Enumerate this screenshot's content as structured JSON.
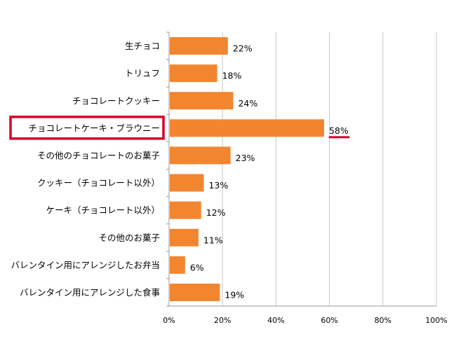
{
  "chart_data": {
    "type": "bar",
    "orientation": "horizontal",
    "categories": [
      "生チョコ",
      "トリュフ",
      "チョコレートクッキー",
      "チョコレートケーキ・ブラウニー",
      "その他のチョコレートのお菓子",
      "クッキー（チョコレート以外）",
      "ケーキ（チョコレート以外）",
      "その他のお菓子",
      "バレンタイン用にアレンジしたお弁当",
      "バレンタイン用にアレンジした食事"
    ],
    "values": [
      22,
      18,
      24,
      58,
      23,
      13,
      12,
      11,
      6,
      19
    ],
    "data_labels": [
      "22%",
      "18%",
      "24%",
      "58%",
      "23%",
      "13%",
      "12%",
      "11%",
      "6%",
      "19%"
    ],
    "x_ticks": [
      0,
      20,
      40,
      60,
      80,
      100
    ],
    "x_tick_labels": [
      "0%",
      "20%",
      "40%",
      "60%",
      "80%",
      "100%"
    ],
    "xlim": [
      0,
      100
    ],
    "grid": "vertical",
    "highlight_index": 3,
    "colors": {
      "bar": "#F28530",
      "highlight": "#D7002A",
      "grid": "#C8C8C8",
      "axis": "#9A9A9A",
      "text": "#000000"
    }
  }
}
